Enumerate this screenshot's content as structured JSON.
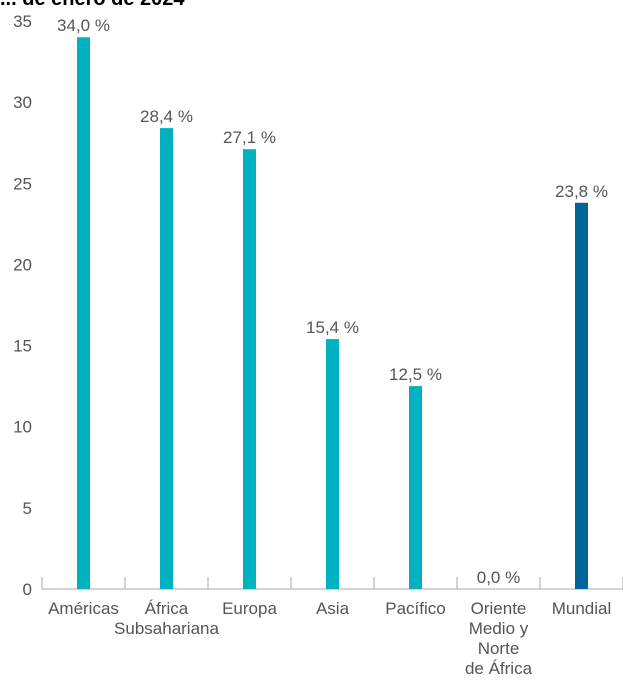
{
  "chart_data": {
    "type": "bar",
    "title": "... de enero de 2024",
    "categories": [
      [
        "Américas"
      ],
      [
        "África",
        "Subsahariana"
      ],
      [
        "Europa"
      ],
      [
        "Asia"
      ],
      [
        "Pacífico"
      ],
      [
        "Oriente",
        "Medio y",
        "Norte",
        "de África"
      ],
      [
        "Mundial"
      ]
    ],
    "values": [
      34.0,
      28.4,
      27.1,
      15.4,
      12.5,
      0.0,
      23.8
    ],
    "value_labels": [
      "34,0 %",
      "28,4 %",
      "27,1 %",
      "15,4 %",
      "12,5 %",
      "0,0 %",
      "23,8 %"
    ],
    "ylim": [
      0,
      35
    ],
    "yticks": [
      0,
      5,
      10,
      15,
      20,
      25,
      30,
      35
    ],
    "xlabel": "",
    "ylabel": "",
    "grid": false,
    "colors": {
      "bar": "#00b2c1",
      "highlight": "#006699",
      "title": "#00b2c1",
      "axis": "#aaaaaa",
      "text": "#555555"
    },
    "highlight_index": 6
  }
}
